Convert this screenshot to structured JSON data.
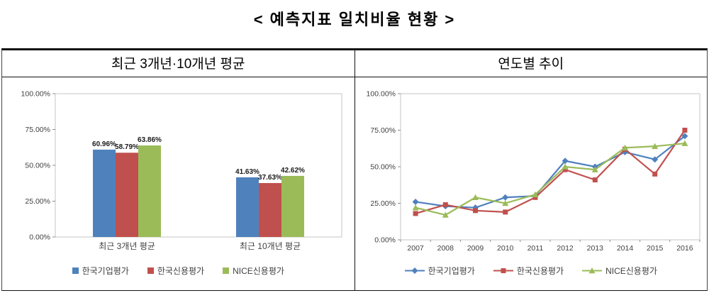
{
  "page_title": "< 예측지표 일치비율 현황 >",
  "panels": {
    "left_header": "최근 3개년·10개년 평균",
    "right_header": "연도별 추이"
  },
  "chart_data": [
    {
      "type": "bar",
      "title": "최근 3개년·10개년 평균",
      "categories": [
        "최근 3개년 평균",
        "최근 10개년 평균"
      ],
      "series": [
        {
          "name": "한국기업평가",
          "color": "#4F81BD",
          "values": [
            60.96,
            41.63
          ]
        },
        {
          "name": "한국신용평가",
          "color": "#C0504D",
          "values": [
            58.79,
            37.63
          ]
        },
        {
          "name": "NICE신용평가",
          "color": "#9BBB59",
          "values": [
            63.86,
            42.62
          ]
        }
      ],
      "data_labels": [
        "60.96%",
        "58.79%",
        "63.86%",
        "41.63%",
        "37.63%",
        "42.62%"
      ],
      "ylim": [
        0,
        100
      ],
      "yticks": [
        "0.00%",
        "25.00%",
        "50.00%",
        "75.00%",
        "100.00%"
      ],
      "grid": false,
      "legend_position": "bottom"
    },
    {
      "type": "line",
      "title": "연도별 추이",
      "x": [
        "2007",
        "2008",
        "2009",
        "2010",
        "2011",
        "2012",
        "2013",
        "2014",
        "2015",
        "2016"
      ],
      "series": [
        {
          "name": "한국기업평가",
          "color": "#4F81BD",
          "marker": "diamond",
          "values": [
            26,
            23,
            22,
            29,
            30,
            54,
            50,
            60,
            55,
            71
          ]
        },
        {
          "name": "한국신용평가",
          "color": "#C0504D",
          "marker": "square",
          "values": [
            18,
            24,
            20,
            19,
            29,
            48,
            41,
            62,
            45,
            75
          ]
        },
        {
          "name": "NICE신용평가",
          "color": "#9BBB59",
          "marker": "triangle",
          "values": [
            22,
            17,
            29,
            25,
            31,
            50,
            48,
            63,
            64,
            66
          ]
        }
      ],
      "ylim": [
        0,
        100
      ],
      "yticks": [
        "0.00%",
        "25.00%",
        "50.00%",
        "75.00%",
        "100.00%"
      ],
      "grid": false,
      "legend_position": "bottom"
    }
  ]
}
